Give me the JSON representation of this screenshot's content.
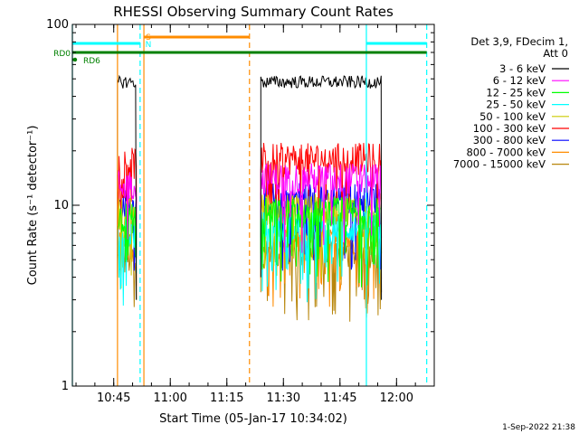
{
  "chart_data": {
    "type": "line",
    "title": "RHESSI Observing Summary Count Rates",
    "xlabel": "Start Time (05-Jan-17 10:34:02)",
    "ylabel": "Count Rate (s⁻¹ detector⁻¹)",
    "y_scale": "log",
    "ylim": [
      1,
      100
    ],
    "x_range": [
      "10:34:02",
      "12:10:00"
    ],
    "y_ticks": [
      {
        "value": 1,
        "label": "1"
      },
      {
        "value": 10,
        "label": "10"
      },
      {
        "value": 100,
        "label": "100"
      }
    ],
    "x_ticks": [
      {
        "time": "10:45",
        "label": "10:45"
      },
      {
        "time": "11:00",
        "label": "11:00"
      },
      {
        "time": "11:15",
        "label": "11:15"
      },
      {
        "time": "11:30",
        "label": "11:30"
      },
      {
        "time": "11:45",
        "label": "11:45"
      },
      {
        "time": "12:00",
        "label": "12:00"
      }
    ],
    "legend": {
      "header_line1": "Det 3,9, FDecim 1,",
      "header_line2": "Att 0",
      "placement": "right"
    },
    "series": [
      {
        "name": "3 - 6 keV",
        "color": "#000000",
        "segments": [
          {
            "start": "10:46:00",
            "end": "10:51:00",
            "level": 48
          },
          {
            "start": "11:24:00",
            "end": "11:56:00",
            "level": 48
          }
        ]
      },
      {
        "name": "6 - 12 keV",
        "color": "#ff00ff",
        "segments": [
          {
            "start": "10:46:00",
            "end": "10:51:00",
            "level": 13
          },
          {
            "start": "11:24:00",
            "end": "11:56:00",
            "level": 14
          }
        ]
      },
      {
        "name": "12 - 25 keV",
        "color": "#00ff00",
        "segments": [
          {
            "start": "10:46:00",
            "end": "10:51:00",
            "level": 8.5
          },
          {
            "start": "11:24:00",
            "end": "11:56:00",
            "level": 9
          }
        ]
      },
      {
        "name": "25 - 50 keV",
        "color": "#00ffff",
        "segments": [
          {
            "start": "10:46:00",
            "end": "10:51:00",
            "level": 7
          },
          {
            "start": "11:24:00",
            "end": "11:56:00",
            "level": 7.5
          }
        ]
      },
      {
        "name": "50 - 100 keV",
        "color": "#cccc00",
        "segments": [
          {
            "start": "10:46:00",
            "end": "10:51:00",
            "level": 9
          },
          {
            "start": "11:24:00",
            "end": "11:56:00",
            "level": 9.5
          }
        ]
      },
      {
        "name": "100 - 300 keV",
        "color": "#ff0000",
        "segments": [
          {
            "start": "10:46:00",
            "end": "10:51:00",
            "level": 17
          },
          {
            "start": "11:24:00",
            "end": "11:56:00",
            "level": 18
          }
        ]
      },
      {
        "name": "300 - 800 keV",
        "color": "#0000ff",
        "segments": [
          {
            "start": "10:46:00",
            "end": "10:51:00",
            "level": 10
          },
          {
            "start": "11:24:00",
            "end": "11:56:00",
            "level": 11
          }
        ]
      },
      {
        "name": "800 - 7000 keV",
        "color": "#ff8c00",
        "segments": [
          {
            "start": "10:46:00",
            "end": "10:51:00",
            "level": 6
          },
          {
            "start": "11:24:00",
            "end": "11:56:00",
            "level": 6.5
          }
        ]
      },
      {
        "name": "7000 - 15000 keV",
        "color": "#b8860b",
        "segments": [
          {
            "start": "10:46:00",
            "end": "10:51:00",
            "level": 5
          },
          {
            "start": "11:24:00",
            "end": "11:56:00",
            "level": 5.5
          }
        ]
      }
    ],
    "status_bars": [
      {
        "label": "",
        "color": "#00ffff",
        "intervals": [
          [
            "10:34:02",
            "10:52:00"
          ],
          [
            "11:52:00",
            "12:08:00"
          ]
        ]
      },
      {
        "label": "",
        "color": "#ff8c00",
        "intervals": [
          [
            "10:53:00",
            "11:21:00"
          ]
        ]
      },
      {
        "label": "RD0",
        "color": "#008000",
        "intervals": [
          [
            "10:34:02",
            "12:08:00"
          ]
        ]
      },
      {
        "label": "RD6",
        "color": "#008000",
        "intervals": [
          [
            "10:34:02",
            "10:34:30"
          ]
        ]
      }
    ],
    "markers": [
      {
        "time": "10:46:00",
        "color": "#ff8c00",
        "style": "solid"
      },
      {
        "time": "10:53:00",
        "color": "#ff8c00",
        "style": "solid"
      },
      {
        "time": "11:21:00",
        "color": "#ff8c00",
        "style": "dashed"
      },
      {
        "time": "10:34:02",
        "color": "#00ffff",
        "style": "solid"
      },
      {
        "time": "10:52:00",
        "color": "#00ffff",
        "style": "dashed"
      },
      {
        "time": "11:52:00",
        "color": "#00ffff",
        "style": "solid"
      },
      {
        "time": "12:08:00",
        "color": "#00ffff",
        "style": "dashed"
      }
    ],
    "flag_labels": [
      {
        "text": "S",
        "time": "10:52:30",
        "color": "#ff8c00"
      },
      {
        "text": "N",
        "time": "10:52:30",
        "color": "#00ffff"
      }
    ],
    "grid": false
  },
  "footer": {
    "timestamp": "1-Sep-2022 21:38"
  }
}
